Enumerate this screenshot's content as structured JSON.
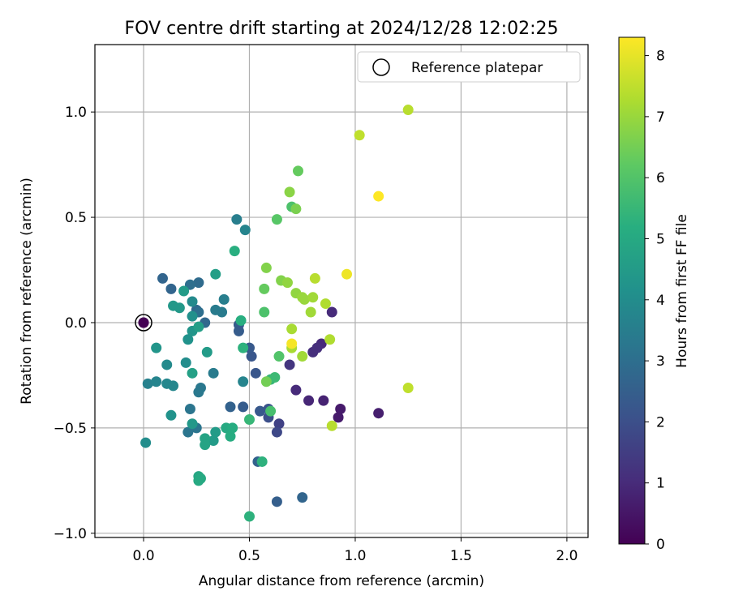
{
  "chart_data": {
    "type": "scatter",
    "title": "FOV centre drift starting at 2024/12/28 12:02:25",
    "xlabel": "Angular distance from reference (arcmin)",
    "ylabel": "Rotation from reference (arcmin)",
    "xlim": [
      -0.23,
      2.1
    ],
    "ylim": [
      -1.02,
      1.32
    ],
    "x_ticks": [
      0.0,
      0.5,
      1.0,
      1.5,
      2.0
    ],
    "x_tick_labels": [
      "0.0",
      "0.5",
      "1.0",
      "1.5",
      "2.0"
    ],
    "y_ticks": [
      -1.0,
      -0.5,
      0.0,
      0.5,
      1.0
    ],
    "y_tick_labels": [
      "−1.0",
      "−0.5",
      "0.0",
      "0.5",
      "1.0"
    ],
    "grid": true,
    "colormap": "viridis",
    "colorbar": {
      "label": "Hours from first FF file",
      "min": 0,
      "max": 8.3,
      "ticks": [
        0,
        1,
        2,
        3,
        4,
        5,
        6,
        7,
        8
      ],
      "tick_labels": [
        "0",
        "1",
        "2",
        "3",
        "4",
        "5",
        "6",
        "7",
        "8"
      ]
    },
    "legend": {
      "position": "top-right",
      "entries": [
        {
          "label": "Reference platepar",
          "marker": "open-circle"
        }
      ]
    },
    "reference_point": {
      "x": 0.0,
      "y": 0.0,
      "hours": 0.0
    },
    "points": [
      {
        "x": 0.0,
        "y": 0.0,
        "hours": 0.0
      },
      {
        "x": 0.85,
        "y": -0.37,
        "hours": 0.8
      },
      {
        "x": 0.78,
        "y": -0.37,
        "hours": 0.9
      },
      {
        "x": 0.72,
        "y": -0.32,
        "hours": 1.0
      },
      {
        "x": 0.92,
        "y": -0.45,
        "hours": 0.6
      },
      {
        "x": 0.93,
        "y": -0.41,
        "hours": 0.6
      },
      {
        "x": 1.11,
        "y": -0.43,
        "hours": 0.7
      },
      {
        "x": 0.89,
        "y": 0.05,
        "hours": 1.0
      },
      {
        "x": 0.84,
        "y": -0.1,
        "hours": 1.0
      },
      {
        "x": 0.82,
        "y": -0.12,
        "hours": 1.1
      },
      {
        "x": 0.8,
        "y": -0.14,
        "hours": 1.1
      },
      {
        "x": 0.69,
        "y": -0.2,
        "hours": 1.3
      },
      {
        "x": 0.64,
        "y": -0.48,
        "hours": 1.6
      },
      {
        "x": 0.63,
        "y": -0.52,
        "hours": 1.8
      },
      {
        "x": 0.59,
        "y": -0.45,
        "hours": 2.0
      },
      {
        "x": 0.59,
        "y": -0.41,
        "hours": 2.1
      },
      {
        "x": 0.53,
        "y": -0.24,
        "hours": 2.2
      },
      {
        "x": 0.51,
        "y": -0.16,
        "hours": 2.2
      },
      {
        "x": 0.5,
        "y": -0.12,
        "hours": 2.3
      },
      {
        "x": 0.55,
        "y": -0.42,
        "hours": 2.3
      },
      {
        "x": 0.47,
        "y": -0.4,
        "hours": 2.4
      },
      {
        "x": 0.41,
        "y": -0.4,
        "hours": 2.6
      },
      {
        "x": 0.45,
        "y": -0.01,
        "hours": 2.4
      },
      {
        "x": 0.45,
        "y": -0.04,
        "hours": 2.4
      },
      {
        "x": 0.63,
        "y": -0.85,
        "hours": 2.5
      },
      {
        "x": 0.75,
        "y": -0.83,
        "hours": 2.7
      },
      {
        "x": 0.54,
        "y": -0.66,
        "hours": 2.6
      },
      {
        "x": 0.09,
        "y": 0.21,
        "hours": 2.7
      },
      {
        "x": 0.13,
        "y": 0.16,
        "hours": 2.7
      },
      {
        "x": 0.25,
        "y": 0.06,
        "hours": 2.8
      },
      {
        "x": 0.29,
        "y": 0.0,
        "hours": 2.8
      },
      {
        "x": 0.26,
        "y": 0.19,
        "hours": 2.9
      },
      {
        "x": 0.22,
        "y": 0.18,
        "hours": 3.0
      },
      {
        "x": 0.26,
        "y": 0.05,
        "hours": 3.0
      },
      {
        "x": 0.22,
        "y": -0.41,
        "hours": 3.2
      },
      {
        "x": 0.25,
        "y": -0.5,
        "hours": 3.2
      },
      {
        "x": 0.21,
        "y": -0.52,
        "hours": 3.2
      },
      {
        "x": 0.27,
        "y": -0.31,
        "hours": 3.3
      },
      {
        "x": 0.26,
        "y": -0.33,
        "hours": 3.3
      },
      {
        "x": 0.33,
        "y": -0.24,
        "hours": 3.4
      },
      {
        "x": 0.34,
        "y": 0.06,
        "hours": 3.4
      },
      {
        "x": 0.37,
        "y": 0.05,
        "hours": 3.4
      },
      {
        "x": 0.38,
        "y": 0.11,
        "hours": 3.5
      },
      {
        "x": 0.44,
        "y": 0.49,
        "hours": 3.5
      },
      {
        "x": 0.48,
        "y": 0.44,
        "hours": 3.7
      },
      {
        "x": 0.47,
        "y": -0.28,
        "hours": 3.7
      },
      {
        "x": 0.02,
        "y": -0.29,
        "hours": 3.6
      },
      {
        "x": 0.06,
        "y": -0.28,
        "hours": 3.7
      },
      {
        "x": 0.11,
        "y": -0.29,
        "hours": 3.8
      },
      {
        "x": 0.14,
        "y": -0.3,
        "hours": 3.8
      },
      {
        "x": 0.11,
        "y": -0.2,
        "hours": 3.9
      },
      {
        "x": 0.2,
        "y": -0.19,
        "hours": 4.0
      },
      {
        "x": 0.23,
        "y": 0.1,
        "hours": 3.9
      },
      {
        "x": 0.23,
        "y": 0.03,
        "hours": 4.1
      },
      {
        "x": 0.21,
        "y": -0.08,
        "hours": 4.2
      },
      {
        "x": 0.23,
        "y": -0.04,
        "hours": 4.3
      },
      {
        "x": 0.01,
        "y": -0.57,
        "hours": 4.0
      },
      {
        "x": 0.06,
        "y": -0.12,
        "hours": 4.3
      },
      {
        "x": 0.13,
        "y": -0.44,
        "hours": 4.2
      },
      {
        "x": 0.14,
        "y": 0.08,
        "hours": 4.4
      },
      {
        "x": 0.17,
        "y": 0.07,
        "hours": 4.4
      },
      {
        "x": 0.19,
        "y": 0.15,
        "hours": 4.5
      },
      {
        "x": 0.23,
        "y": -0.48,
        "hours": 4.4
      },
      {
        "x": 0.3,
        "y": -0.14,
        "hours": 4.5
      },
      {
        "x": 0.33,
        "y": -0.56,
        "hours": 4.5
      },
      {
        "x": 0.34,
        "y": -0.52,
        "hours": 4.5
      },
      {
        "x": 0.34,
        "y": 0.23,
        "hours": 4.6
      },
      {
        "x": 0.26,
        "y": -0.02,
        "hours": 4.6
      },
      {
        "x": 0.23,
        "y": -0.24,
        "hours": 4.7
      },
      {
        "x": 0.29,
        "y": -0.55,
        "hours": 4.8
      },
      {
        "x": 0.29,
        "y": -0.58,
        "hours": 4.8
      },
      {
        "x": 0.26,
        "y": -0.73,
        "hours": 4.9
      },
      {
        "x": 0.26,
        "y": -0.75,
        "hours": 5.0
      },
      {
        "x": 0.27,
        "y": -0.74,
        "hours": 5.0
      },
      {
        "x": 0.39,
        "y": -0.5,
        "hours": 5.0
      },
      {
        "x": 0.41,
        "y": -0.54,
        "hours": 5.1
      },
      {
        "x": 0.42,
        "y": -0.5,
        "hours": 5.1
      },
      {
        "x": 0.43,
        "y": 0.34,
        "hours": 5.2
      },
      {
        "x": 0.46,
        "y": 0.01,
        "hours": 5.2
      },
      {
        "x": 0.47,
        "y": -0.12,
        "hours": 5.3
      },
      {
        "x": 0.5,
        "y": -0.92,
        "hours": 5.3
      },
      {
        "x": 0.56,
        "y": -0.66,
        "hours": 5.3
      },
      {
        "x": 0.5,
        "y": -0.46,
        "hours": 5.5
      },
      {
        "x": 0.6,
        "y": -0.27,
        "hours": 5.5
      },
      {
        "x": 0.62,
        "y": -0.26,
        "hours": 5.6
      },
      {
        "x": 0.6,
        "y": -0.42,
        "hours": 5.8
      },
      {
        "x": 0.57,
        "y": 0.05,
        "hours": 5.9
      },
      {
        "x": 0.64,
        "y": -0.16,
        "hours": 6.0
      },
      {
        "x": 0.63,
        "y": 0.49,
        "hours": 6.1
      },
      {
        "x": 0.7,
        "y": 0.55,
        "hours": 5.9
      },
      {
        "x": 0.73,
        "y": 0.72,
        "hours": 6.3
      },
      {
        "x": 0.57,
        "y": 0.16,
        "hours": 6.3
      },
      {
        "x": 0.58,
        "y": -0.28,
        "hours": 6.5
      },
      {
        "x": 0.72,
        "y": 0.54,
        "hours": 6.6
      },
      {
        "x": 0.69,
        "y": 0.62,
        "hours": 6.8
      },
      {
        "x": 0.58,
        "y": 0.26,
        "hours": 6.7
      },
      {
        "x": 0.65,
        "y": 0.2,
        "hours": 6.7
      },
      {
        "x": 0.68,
        "y": 0.19,
        "hours": 6.9
      },
      {
        "x": 0.72,
        "y": 0.14,
        "hours": 6.9
      },
      {
        "x": 0.75,
        "y": 0.12,
        "hours": 7.0
      },
      {
        "x": 0.76,
        "y": 0.11,
        "hours": 7.0
      },
      {
        "x": 0.8,
        "y": 0.12,
        "hours": 7.1
      },
      {
        "x": 0.79,
        "y": 0.05,
        "hours": 7.1
      },
      {
        "x": 0.75,
        "y": -0.16,
        "hours": 7.1
      },
      {
        "x": 0.7,
        "y": -0.03,
        "hours": 7.2
      },
      {
        "x": 0.7,
        "y": -0.12,
        "hours": 7.2
      },
      {
        "x": 0.81,
        "y": 0.21,
        "hours": 7.4
      },
      {
        "x": 0.86,
        "y": 0.09,
        "hours": 7.3
      },
      {
        "x": 0.88,
        "y": -0.08,
        "hours": 7.3
      },
      {
        "x": 0.89,
        "y": -0.49,
        "hours": 7.4
      },
      {
        "x": 1.02,
        "y": 0.89,
        "hours": 7.5
      },
      {
        "x": 1.25,
        "y": 1.01,
        "hours": 7.4
      },
      {
        "x": 1.25,
        "y": -0.31,
        "hours": 7.5
      },
      {
        "x": 0.7,
        "y": -0.1,
        "hours": 8.2
      },
      {
        "x": 0.96,
        "y": 0.23,
        "hours": 8.1
      },
      {
        "x": 1.11,
        "y": 0.6,
        "hours": 8.3
      }
    ]
  }
}
